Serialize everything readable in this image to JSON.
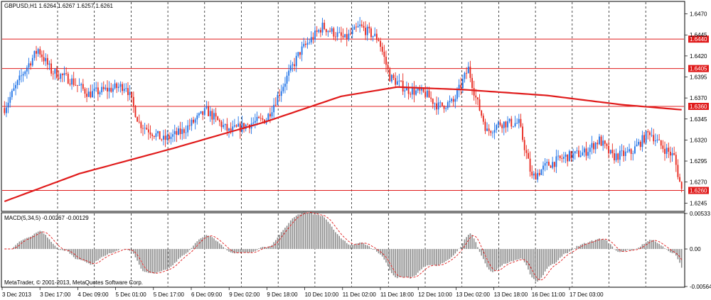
{
  "header": {
    "symbol_label": "GBPUSD,H1 1.6264 1.6267 1.6257 1.6261",
    "macd_label": "MACD(5,34,5) -0.00267 -0.00129",
    "copyright": "MetaTrader, © 2001-2013, MetaQuotes Software Corp."
  },
  "colors": {
    "bull": "#1e73e8",
    "bear": "#e8281e",
    "ma": "#e01b1b",
    "level": "#e01b1b",
    "macd_bar": "#8a8a8a",
    "signal": "#e01b1b"
  },
  "chart_data": {
    "type": "candlestick",
    "symbol": "GBPUSD",
    "timeframe": "H1",
    "price_axis": {
      "ylim": [
        1.6236,
        1.6484
      ],
      "ticks": [
        "1.6470",
        "1.6445",
        "1.6420",
        "1.6395",
        "1.6370",
        "1.6345",
        "1.6320",
        "1.6295",
        "1.6270",
        "1.6245"
      ]
    },
    "x_ticks": [
      "3 Dec 2013",
      "3 Dec 17:00",
      "4 Dec 09:00",
      "5 Dec 01:00",
      "5 Dec 17:00",
      "6 Dec 09:00",
      "9 Dec 02:00",
      "9 Dec 18:00",
      "10 Dec 10:00",
      "11 Dec 02:00",
      "11 Dec 18:00",
      "12 Dec 10:00",
      "13 Dec 02:00",
      "13 Dec 18:00",
      "16 Dec 11:00",
      "17 Dec 03:00"
    ],
    "horizontal_levels": [
      {
        "label": "1.6440",
        "value": 1.644
      },
      {
        "label": "1.6405",
        "value": 1.6405
      },
      {
        "label": "1.6360",
        "value": 1.636
      },
      {
        "label": "1.6260",
        "value": 1.626
      }
    ],
    "close_anchors": [
      [
        0,
        1.6358
      ],
      [
        10,
        1.64
      ],
      [
        18,
        1.6428
      ],
      [
        25,
        1.6402
      ],
      [
        35,
        1.6392
      ],
      [
        45,
        1.6375
      ],
      [
        55,
        1.638
      ],
      [
        65,
        1.6385
      ],
      [
        72,
        1.634
      ],
      [
        85,
        1.632
      ],
      [
        95,
        1.633
      ],
      [
        108,
        1.6355
      ],
      [
        120,
        1.633
      ],
      [
        132,
        1.634
      ],
      [
        140,
        1.6345
      ],
      [
        150,
        1.639
      ],
      [
        158,
        1.6425
      ],
      [
        170,
        1.6455
      ],
      [
        182,
        1.644
      ],
      [
        190,
        1.6455
      ],
      [
        200,
        1.644
      ],
      [
        206,
        1.6395
      ],
      [
        215,
        1.638
      ],
      [
        225,
        1.6375
      ],
      [
        232,
        1.636
      ],
      [
        240,
        1.6365
      ],
      [
        248,
        1.6405
      ],
      [
        252,
        1.637
      ],
      [
        258,
        1.633
      ],
      [
        265,
        1.634
      ],
      [
        275,
        1.634
      ],
      [
        282,
        1.6275
      ],
      [
        290,
        1.629
      ],
      [
        300,
        1.63
      ],
      [
        310,
        1.6305
      ],
      [
        318,
        1.632
      ],
      [
        325,
        1.63
      ],
      [
        335,
        1.6305
      ],
      [
        345,
        1.633
      ],
      [
        350,
        1.6315
      ],
      [
        358,
        1.63
      ],
      [
        362,
        1.626
      ]
    ],
    "ma_anchors": [
      [
        0,
        1.6247
      ],
      [
        40,
        1.628
      ],
      [
        90,
        1.631
      ],
      [
        140,
        1.6342
      ],
      [
        180,
        1.6372
      ],
      [
        210,
        1.6383
      ],
      [
        245,
        1.638
      ],
      [
        290,
        1.6373
      ],
      [
        330,
        1.6362
      ],
      [
        362,
        1.6356
      ]
    ],
    "macd": {
      "params": "5,34,5",
      "main": -0.00267,
      "signal": -0.00129,
      "ylim": [
        -0.00564,
        0.00533
      ],
      "ticks": [
        "0.00533",
        "0.00",
        "-0.00564"
      ]
    }
  }
}
